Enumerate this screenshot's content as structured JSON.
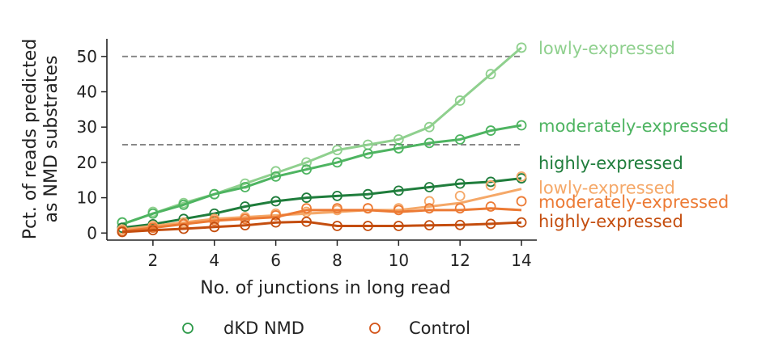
{
  "chart_data": {
    "type": "line",
    "xlabel": "No. of junctions in long read",
    "ylabel_lines": [
      "Pct. of reads predicted",
      "as NMD substrates"
    ],
    "xlim": [
      0.5,
      14.5
    ],
    "ylim": [
      -2,
      55
    ],
    "xticks": [
      2,
      4,
      6,
      8,
      10,
      12,
      14
    ],
    "yticks": [
      0,
      10,
      20,
      30,
      40,
      50
    ],
    "reference_lines": [
      50,
      25
    ],
    "x": [
      1,
      2,
      3,
      4,
      5,
      6,
      7,
      8,
      9,
      10,
      11,
      12,
      13,
      14
    ],
    "legend": {
      "placement": "bottom",
      "entries": [
        {
          "label": "dKD NMD",
          "color": "#2e9a4a"
        },
        {
          "label": "Control",
          "color": "#d4551a"
        }
      ]
    },
    "series": [
      {
        "name": "lowly-expressed",
        "group": "dKD NMD",
        "color": "#8fd08e",
        "line": [
          2.5,
          5.5,
          8.5,
          11,
          14,
          17,
          20,
          23.5,
          25,
          26.5,
          30,
          37.5,
          45,
          52.5
        ],
        "points": [
          3,
          6,
          8.5,
          11,
          14,
          17.5,
          20,
          23.5,
          25,
          26.5,
          30,
          37.5,
          45,
          52.5
        ]
      },
      {
        "name": "moderately-expressed",
        "group": "dKD NMD",
        "color": "#4eb461",
        "line": [
          2.5,
          5.5,
          8,
          11,
          13,
          16,
          18,
          20,
          22.5,
          24,
          25.5,
          26.5,
          29,
          30.5
        ],
        "points": [
          3,
          5.5,
          8,
          11,
          13,
          16,
          18,
          20,
          22.5,
          24,
          25.5,
          26.5,
          29,
          30.5
        ]
      },
      {
        "name": "highly-expressed",
        "group": "dKD NMD",
        "color": "#1f7d3c",
        "line": [
          1.5,
          2.5,
          4,
          5.5,
          7.5,
          9,
          10,
          10.5,
          11,
          12,
          13,
          14,
          14.5,
          15.5
        ],
        "points": [
          1.5,
          2.5,
          4,
          5.5,
          7.5,
          9,
          10,
          10.5,
          11,
          12,
          13,
          14,
          14.5,
          15.5
        ]
      },
      {
        "name": "lowly-expressed",
        "group": "Control",
        "color": "#f5a868",
        "line": [
          1,
          2,
          3,
          4,
          4.5,
          5,
          5.5,
          6,
          6.5,
          6.5,
          7.5,
          8.5,
          10.5,
          12.5
        ],
        "points": [
          1,
          2,
          3,
          4,
          4.5,
          5.5,
          6,
          6.5,
          7,
          7,
          9,
          10.5,
          13.5,
          16
        ]
      },
      {
        "name": "moderately-expressed",
        "group": "Control",
        "color": "#ec7a34",
        "line": [
          0.5,
          1.5,
          2.5,
          3.5,
          4,
          4.5,
          6.5,
          6.5,
          6.5,
          6,
          6.5,
          6.5,
          7,
          6.5
        ],
        "points": [
          0.5,
          1.5,
          2.5,
          3.5,
          4,
          5,
          7,
          7,
          7,
          6.5,
          7,
          7,
          7.5,
          9
        ]
      },
      {
        "name": "highly-expressed",
        "group": "Control",
        "color": "#c44d0e",
        "line": [
          0.3,
          0.8,
          1.2,
          1.7,
          2.2,
          3,
          3.2,
          2,
          2,
          2,
          2.2,
          2.3,
          2.6,
          3
        ],
        "points": [
          0.3,
          0.8,
          1.2,
          1.7,
          2.2,
          3,
          3.2,
          2,
          2,
          2,
          2.2,
          2.3,
          2.6,
          3
        ]
      }
    ],
    "annotations": [
      {
        "text": "lowly-expressed",
        "color": "#8fd08e",
        "anchor_y": 52.5
      },
      {
        "text": "moderately-expressed",
        "color": "#4eb461",
        "anchor_y": 30.5
      },
      {
        "text": "highly-expressed",
        "color": "#1f7d3c",
        "anchor_y": 20
      },
      {
        "text": "lowly-expressed",
        "color": "#f5a868",
        "anchor_y": 13
      },
      {
        "text": "moderately-expressed",
        "color": "#ec7a34",
        "anchor_y": 9
      },
      {
        "text": "highly-expressed",
        "color": "#c44d0e",
        "anchor_y": 3.5
      }
    ]
  }
}
